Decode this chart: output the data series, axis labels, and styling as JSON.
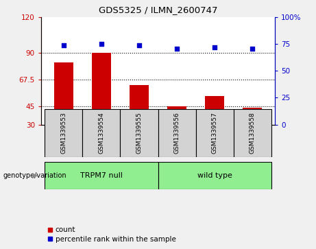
{
  "title": "GDS5325 / ILMN_2600747",
  "samples": [
    "GSM1339553",
    "GSM1339554",
    "GSM1339555",
    "GSM1339556",
    "GSM1339557",
    "GSM1339558"
  ],
  "counts": [
    82,
    90,
    63,
    45,
    54,
    44
  ],
  "percentiles": [
    74,
    75,
    74,
    71,
    72,
    71
  ],
  "groups": [
    "TRPM7 null",
    "TRPM7 null",
    "TRPM7 null",
    "wild type",
    "wild type",
    "wild type"
  ],
  "group_labels": [
    "TRPM7 null",
    "wild type"
  ],
  "bar_color": "#CC0000",
  "dot_color": "#0000CC",
  "ylim_left": [
    30,
    120
  ],
  "ylim_right": [
    0,
    100
  ],
  "yticks_left": [
    30,
    45,
    67.5,
    90,
    120
  ],
  "yticks_right": [
    0,
    25,
    50,
    75,
    100
  ],
  "hlines": [
    45,
    67.5,
    90
  ],
  "background_color": "#f0f0f0",
  "plot_bg": "#ffffff",
  "legend_count_label": "count",
  "legend_pct_label": "percentile rank within the sample",
  "green_color": "#90EE90",
  "gray_color": "#d3d3d3"
}
